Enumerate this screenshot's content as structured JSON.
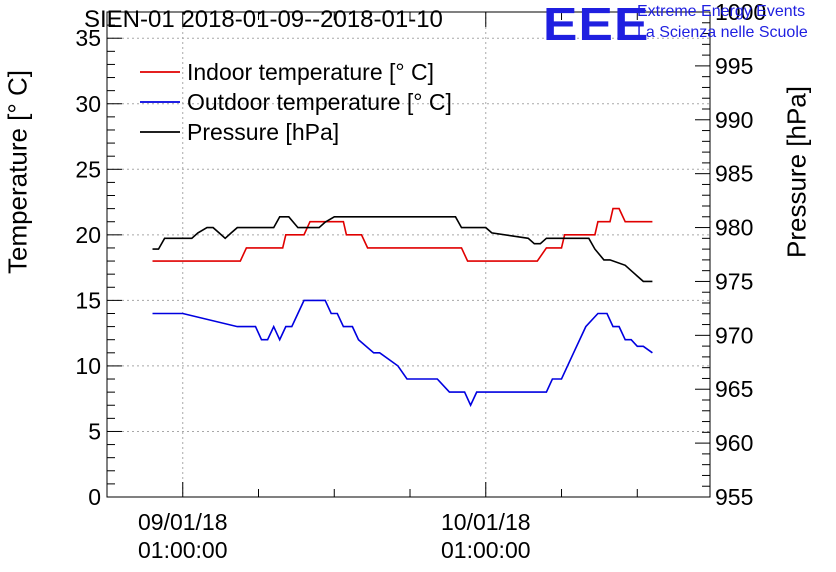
{
  "chart_data": {
    "type": "line",
    "title": "SIEN-01 2018-01-09--2018-01-10",
    "branding": {
      "logo": "EEE",
      "line1": "Extreme Energy Events",
      "line2": "La Scienza nelle Scuole",
      "color": "#1f1fe0"
    },
    "xlabel": "",
    "xlim": [
      -0.25,
      1.74
    ],
    "x_ticks": [
      {
        "x": 0,
        "date": "09/01/18",
        "time": "01:00:00"
      },
      {
        "x": 1,
        "date": "10/01/18",
        "time": "01:00:00"
      }
    ],
    "ylabel_left": "Temperature [° C]",
    "ylim_left": [
      0,
      37
    ],
    "yticks_left": [
      0,
      5,
      10,
      15,
      20,
      25,
      30,
      35
    ],
    "ylabel_right": "Pressure [hPa]",
    "ylim_right": [
      955,
      1000
    ],
    "yticks_right": [
      955,
      960,
      965,
      970,
      975,
      980,
      985,
      990,
      995,
      1000
    ],
    "legend_position": "top-left",
    "series": [
      {
        "name": "Indoor temperature [° C]",
        "axis": "left",
        "color": "#e00000",
        "x": [
          -0.1,
          0.19,
          0.21,
          0.33,
          0.34,
          0.4,
          0.42,
          0.53,
          0.54,
          0.59,
          0.61,
          0.66,
          0.67,
          0.92,
          0.94,
          1.17,
          1.2,
          1.25,
          1.26,
          1.36,
          1.37,
          1.41,
          1.42,
          1.44,
          1.46,
          1.48,
          1.55
        ],
        "values": [
          18,
          18,
          19,
          19,
          20,
          20,
          21,
          21,
          20,
          20,
          19,
          19,
          19,
          19,
          18,
          18,
          19,
          19,
          20,
          20,
          21,
          21,
          22,
          22,
          21,
          21,
          21
        ]
      },
      {
        "name": "Outdoor temperature [° C]",
        "axis": "left",
        "color": "#0000e0",
        "x": [
          -0.1,
          -0.02,
          0.0,
          0.18,
          0.2,
          0.24,
          0.26,
          0.28,
          0.3,
          0.32,
          0.34,
          0.36,
          0.38,
          0.4,
          0.42,
          0.47,
          0.49,
          0.51,
          0.53,
          0.56,
          0.58,
          0.63,
          0.65,
          0.71,
          0.74,
          0.84,
          0.88,
          0.93,
          0.95,
          0.97,
          1.0,
          1.2,
          1.22,
          1.25,
          1.29,
          1.33,
          1.37,
          1.4,
          1.42,
          1.44,
          1.46,
          1.48,
          1.5,
          1.52,
          1.55
        ],
        "values": [
          14,
          14,
          14,
          13,
          13,
          13,
          12,
          12,
          13,
          12,
          13,
          13,
          14,
          15,
          15,
          15,
          14,
          14,
          13,
          13,
          12,
          11,
          11,
          10,
          9,
          9,
          8,
          8,
          7,
          8,
          8,
          8,
          9,
          9,
          11,
          13,
          14,
          14,
          13,
          13,
          12,
          12,
          11.5,
          11.5,
          11
        ]
      },
      {
        "name": "Pressure [hPa]",
        "axis": "right",
        "color": "#000000",
        "x": [
          -0.1,
          -0.08,
          -0.06,
          0.03,
          0.05,
          0.08,
          0.1,
          0.12,
          0.14,
          0.16,
          0.18,
          0.3,
          0.32,
          0.35,
          0.38,
          0.45,
          0.47,
          0.5,
          0.52,
          0.6,
          0.62,
          0.65,
          0.67,
          0.75,
          0.77,
          0.9,
          0.92,
          1.0,
          1.02,
          1.14,
          1.16,
          1.18,
          1.2,
          1.34,
          1.36,
          1.39,
          1.41,
          1.46,
          1.48,
          1.5,
          1.52,
          1.55
        ],
        "values": [
          978,
          978,
          979,
          979,
          979.5,
          980,
          980,
          979.5,
          979,
          979.5,
          980,
          980,
          981,
          981,
          980,
          980,
          980.5,
          981,
          981,
          981,
          981,
          981,
          981,
          981,
          981,
          981,
          980,
          980,
          979.5,
          979,
          978.5,
          978.5,
          979,
          979,
          978,
          977,
          977,
          976.5,
          976,
          975.5,
          975,
          975
        ]
      }
    ]
  }
}
